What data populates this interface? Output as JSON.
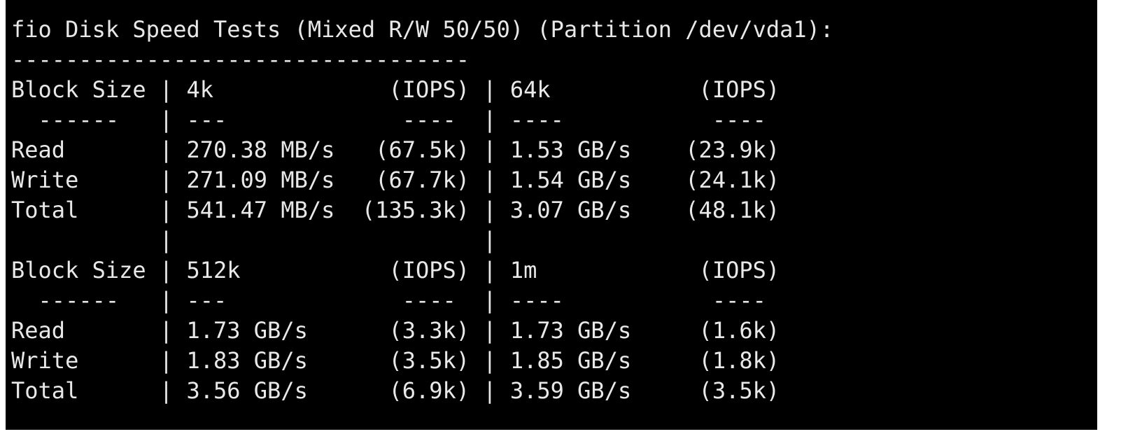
{
  "title": "fio Disk Speed Tests (Mixed R/W 50/50) (Partition /dev/vda1):",
  "rule": "----------------------------------",
  "column_separator": "|",
  "blocks": [
    {
      "header": [
        "Block Size",
        "4k",
        "(IOPS)",
        "64k",
        "(IOPS)"
      ],
      "divider": [
        "------",
        "---",
        "----",
        "----",
        "----"
      ],
      "rows": [
        [
          "Read",
          "270.38 MB/s",
          "(67.5k)",
          "1.53 GB/s",
          "(23.9k)"
        ],
        [
          "Write",
          "271.09 MB/s",
          "(67.7k)",
          "1.54 GB/s",
          "(24.1k)"
        ],
        [
          "Total",
          "541.47 MB/s",
          "(135.3k)",
          "3.07 GB/s",
          "(48.1k)"
        ]
      ]
    },
    {
      "header": [
        "Block Size",
        "512k",
        "(IOPS)",
        "1m",
        "(IOPS)"
      ],
      "divider": [
        "------",
        "---",
        "----",
        "----",
        "----"
      ],
      "rows": [
        [
          "Read",
          "1.73 GB/s",
          "(3.3k)",
          "1.73 GB/s",
          "(1.6k)"
        ],
        [
          "Write",
          "1.83 GB/s",
          "(3.5k)",
          "1.85 GB/s",
          "(1.8k)"
        ],
        [
          "Total",
          "3.56 GB/s",
          "(6.9k)",
          "3.59 GB/s",
          "(3.5k)"
        ]
      ]
    }
  ]
}
